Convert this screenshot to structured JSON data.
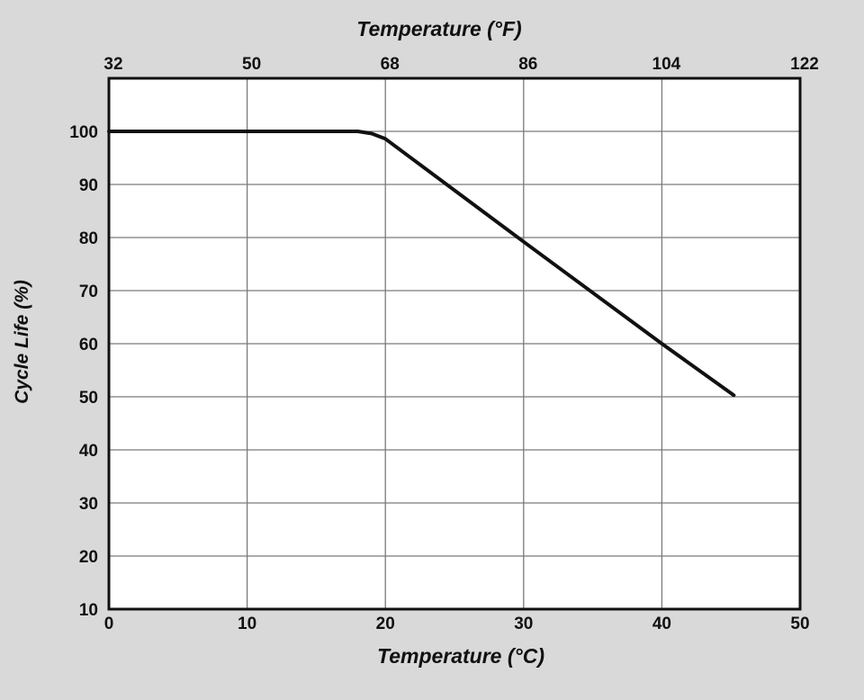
{
  "chart_data": {
    "type": "line",
    "xlabel": "Temperature (°C)",
    "x2label": "Temperature (°F)",
    "ylabel": "Cycle Life (%)",
    "xlim": [
      0,
      50
    ],
    "ylim": [
      10,
      110
    ],
    "x_ticks": [
      "0",
      "10",
      "20",
      "30",
      "40",
      "50"
    ],
    "x2_ticks": [
      "32",
      "50",
      "68",
      "86",
      "104",
      "122"
    ],
    "y_ticks": [
      "10",
      "20",
      "30",
      "40",
      "50",
      "60",
      "70",
      "80",
      "90",
      "100"
    ],
    "grid": true,
    "series": [
      {
        "x": [
          0,
          18,
          19,
          20,
          30,
          40,
          45.2
        ],
        "y": [
          100,
          100,
          99.6,
          98.6,
          79.2,
          60,
          50.3
        ],
        "color": "#111111"
      }
    ]
  },
  "colors": {
    "background": "#d9d9d9",
    "plot_area": "#ffffff",
    "line": "#111111",
    "grid": "#7a7a7a"
  }
}
